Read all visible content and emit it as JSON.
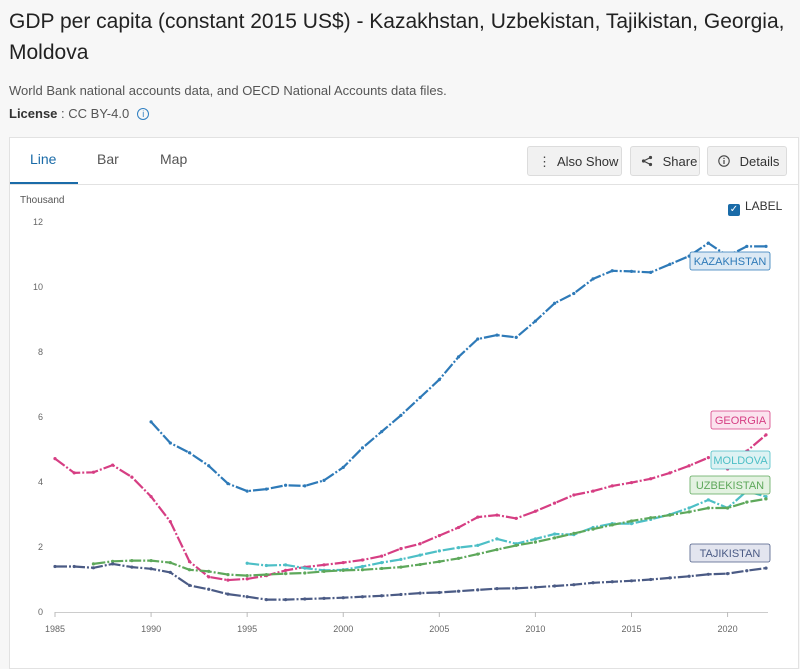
{
  "page": {
    "title": "GDP per capita (constant 2015 US$) - Kazakhstan, Uzbekistan, Tajikistan, Georgia, Moldova",
    "source": "World Bank national accounts data, and OECD National Accounts data files.",
    "license_label": "License",
    "license_value": " : CC BY-4.0"
  },
  "tabs": [
    {
      "label": "Line",
      "active": true
    },
    {
      "label": "Bar",
      "active": false
    },
    {
      "label": "Map",
      "active": false
    }
  ],
  "toolbar": {
    "also_show": "Also Show",
    "share": "Share",
    "details": "Details"
  },
  "label_toggle": {
    "label": "LABEL",
    "checked": true
  },
  "icons": {
    "also_show": "kebab-icon",
    "share": "share-icon",
    "details": "info-icon",
    "license": "info-icon"
  },
  "chart_data": {
    "type": "line",
    "ylabel": "Thousand",
    "xlim": [
      1985,
      2022
    ],
    "ylim": [
      0,
      12
    ],
    "x_ticks": [
      1985,
      1990,
      1995,
      2000,
      2005,
      2010,
      2015,
      2020
    ],
    "y_ticks": [
      0,
      2,
      4,
      6,
      8,
      10,
      12
    ],
    "grid": false,
    "series": [
      {
        "name": "KAZAKHSTAN",
        "color": "#2e7ab8",
        "label_fill": "#dce9f4",
        "x": [
          1990,
          1991,
          1992,
          1993,
          1994,
          1995,
          1996,
          1997,
          1998,
          1999,
          2000,
          2001,
          2002,
          2003,
          2004,
          2005,
          2006,
          2007,
          2008,
          2009,
          2010,
          2011,
          2012,
          2013,
          2014,
          2015,
          2016,
          2017,
          2018,
          2019,
          2020,
          2021,
          2022
        ],
        "y": [
          5.85,
          5.2,
          4.9,
          4.5,
          3.95,
          3.72,
          3.78,
          3.9,
          3.88,
          4.05,
          4.45,
          5.05,
          5.55,
          6.05,
          6.6,
          7.15,
          7.85,
          8.4,
          8.52,
          8.45,
          8.95,
          9.5,
          9.8,
          10.25,
          10.5,
          10.48,
          10.45,
          10.7,
          10.95,
          11.35,
          10.95,
          11.25,
          11.25
        ]
      },
      {
        "name": "GEORGIA",
        "color": "#d63e83",
        "label_fill": "#fbe3ee",
        "x": [
          1985,
          1986,
          1987,
          1988,
          1989,
          1990,
          1991,
          1992,
          1993,
          1994,
          1995,
          1996,
          1997,
          1998,
          1999,
          2000,
          2001,
          2002,
          2003,
          2004,
          2005,
          2006,
          2007,
          2008,
          2009,
          2010,
          2011,
          2012,
          2013,
          2014,
          2015,
          2016,
          2017,
          2018,
          2019,
          2020,
          2021,
          2022
        ],
        "y": [
          4.72,
          4.28,
          4.3,
          4.52,
          4.15,
          3.55,
          2.78,
          1.55,
          1.08,
          0.98,
          1.02,
          1.12,
          1.28,
          1.38,
          1.45,
          1.52,
          1.6,
          1.72,
          1.95,
          2.1,
          2.35,
          2.6,
          2.92,
          2.98,
          2.88,
          3.1,
          3.35,
          3.6,
          3.72,
          3.88,
          3.98,
          4.1,
          4.28,
          4.5,
          4.75,
          4.4,
          4.95,
          5.45
        ]
      },
      {
        "name": "MOLDOVA",
        "color": "#4dbfc6",
        "label_fill": "#ddf2f3",
        "x": [
          1995,
          1996,
          1997,
          1998,
          1999,
          2000,
          2001,
          2002,
          2003,
          2004,
          2005,
          2006,
          2007,
          2008,
          2009,
          2010,
          2011,
          2012,
          2013,
          2014,
          2015,
          2016,
          2017,
          2018,
          2019,
          2020,
          2021,
          2022
        ],
        "y": [
          1.5,
          1.43,
          1.45,
          1.35,
          1.28,
          1.3,
          1.4,
          1.52,
          1.62,
          1.75,
          1.88,
          1.98,
          2.05,
          2.25,
          2.1,
          2.25,
          2.4,
          2.38,
          2.6,
          2.72,
          2.72,
          2.85,
          3.0,
          3.2,
          3.45,
          3.2,
          3.72,
          3.55
        ]
      },
      {
        "name": "UZBEKISTAN",
        "color": "#5ea85b",
        "label_fill": "#e3f2e1",
        "x": [
          1987,
          1988,
          1989,
          1990,
          1991,
          1992,
          1993,
          1994,
          1995,
          1996,
          1997,
          1998,
          1999,
          2000,
          2001,
          2002,
          2003,
          2004,
          2005,
          2006,
          2007,
          2008,
          2009,
          2010,
          2011,
          2012,
          2013,
          2014,
          2015,
          2016,
          2017,
          2018,
          2019,
          2020,
          2021,
          2022
        ],
        "y": [
          1.48,
          1.56,
          1.58,
          1.58,
          1.52,
          1.3,
          1.25,
          1.15,
          1.12,
          1.15,
          1.18,
          1.2,
          1.25,
          1.28,
          1.3,
          1.34,
          1.38,
          1.46,
          1.55,
          1.65,
          1.78,
          1.92,
          2.05,
          2.15,
          2.28,
          2.42,
          2.55,
          2.68,
          2.8,
          2.9,
          2.98,
          3.08,
          3.2,
          3.2,
          3.38,
          3.48
        ]
      },
      {
        "name": "TAJIKISTAN",
        "color": "#4b5b85",
        "label_fill": "#e3e5ef",
        "x": [
          1985,
          1986,
          1987,
          1988,
          1989,
          1990,
          1991,
          1992,
          1993,
          1994,
          1995,
          1996,
          1997,
          1998,
          1999,
          2000,
          2001,
          2002,
          2003,
          2004,
          2005,
          2006,
          2007,
          2008,
          2009,
          2010,
          2011,
          2012,
          2013,
          2014,
          2015,
          2016,
          2017,
          2018,
          2019,
          2020,
          2021,
          2022
        ],
        "y": [
          1.4,
          1.4,
          1.36,
          1.48,
          1.38,
          1.33,
          1.22,
          0.82,
          0.7,
          0.55,
          0.47,
          0.38,
          0.38,
          0.4,
          0.42,
          0.44,
          0.47,
          0.5,
          0.54,
          0.58,
          0.6,
          0.64,
          0.68,
          0.72,
          0.73,
          0.76,
          0.8,
          0.84,
          0.9,
          0.93,
          0.96,
          1.0,
          1.05,
          1.1,
          1.16,
          1.18,
          1.27,
          1.35
        ]
      }
    ]
  }
}
